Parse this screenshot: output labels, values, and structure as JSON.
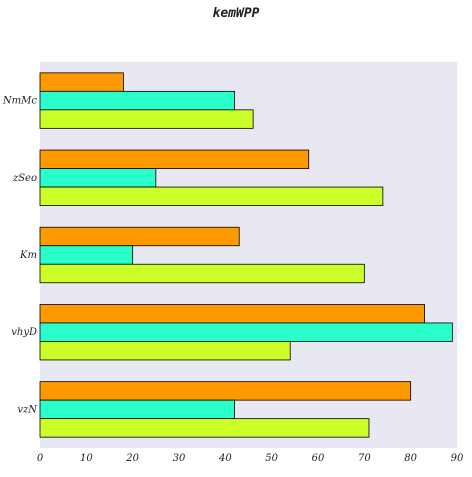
{
  "chart_data": {
    "type": "bar",
    "orientation": "horizontal",
    "title": "kemWPP",
    "xlabel": "",
    "ylabel": "",
    "categories": [
      "vzN",
      "vhyD",
      "Km",
      "zSeo",
      "NmMc"
    ],
    "series": [
      {
        "color": "#ff9900",
        "values": [
          80,
          83,
          43,
          58,
          18
        ]
      },
      {
        "color": "#2affcc",
        "values": [
          42,
          89,
          20,
          25,
          42
        ]
      },
      {
        "color": "#ccff2a",
        "values": [
          71,
          54,
          70,
          74,
          46
        ]
      }
    ],
    "xlim": [
      0,
      90
    ],
    "xticks": [
      "0",
      "10",
      "20",
      "30",
      "40",
      "50",
      "60",
      "70",
      "80",
      "90"
    ],
    "grid": false,
    "legend": "none",
    "background_color": "#e8e8f2",
    "bar_edge_color": "#000000"
  }
}
